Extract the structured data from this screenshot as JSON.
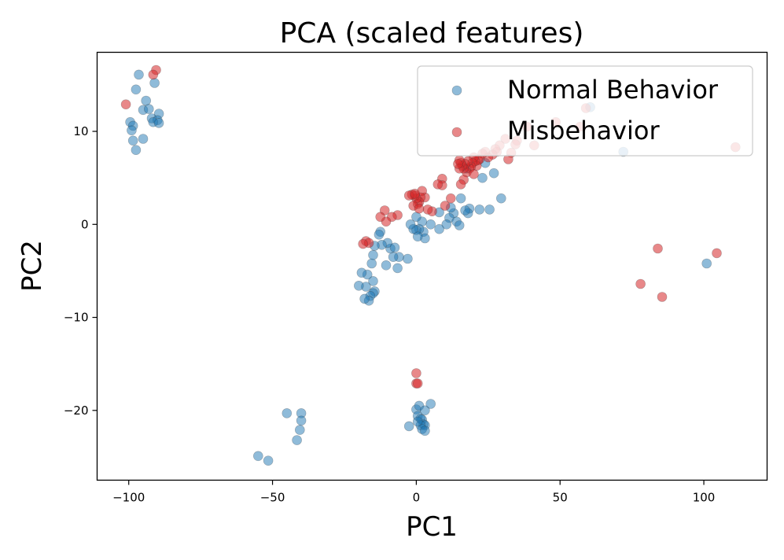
{
  "chart_data": {
    "type": "scatter",
    "title": "PCA (scaled features)",
    "xlabel": "PC1",
    "ylabel": "PC2",
    "xlim": [
      -111,
      122
    ],
    "ylim": [
      -27.5,
      18.5
    ],
    "xticks": [
      -100,
      -50,
      0,
      50,
      100
    ],
    "yticks": [
      -20,
      -10,
      0,
      10
    ],
    "xtick_labels": [
      "−100",
      "−50",
      "0",
      "50",
      "100"
    ],
    "ytick_labels": [
      "−20",
      "−10",
      "0",
      "10"
    ],
    "grid": false,
    "legend_position": "top-right",
    "series": [
      {
        "name": "Normal Behavior",
        "color": "#1f77b4",
        "opacity": 0.5,
        "points": [
          [
            -96.5,
            16.1
          ],
          [
            -97.5,
            14.5
          ],
          [
            -91.0,
            15.2
          ],
          [
            -94.0,
            13.3
          ],
          [
            -95.0,
            12.3
          ],
          [
            -93.0,
            12.4
          ],
          [
            -89.5,
            11.9
          ],
          [
            -92.0,
            11.4
          ],
          [
            -90.0,
            11.2
          ],
          [
            -91.5,
            11.0
          ],
          [
            -89.5,
            10.9
          ],
          [
            -99.5,
            11.0
          ],
          [
            -98.5,
            10.6
          ],
          [
            -99.0,
            10.1
          ],
          [
            -98.5,
            9.0
          ],
          [
            -95.0,
            9.2
          ],
          [
            -97.5,
            8.0
          ],
          [
            72.0,
            7.8
          ],
          [
            60.5,
            12.6
          ],
          [
            101.0,
            -4.2
          ],
          [
            29.5,
            2.8
          ],
          [
            25.5,
            1.6
          ],
          [
            22.0,
            1.6
          ],
          [
            18.5,
            1.7
          ],
          [
            18.0,
            1.2
          ],
          [
            17.0,
            1.5
          ],
          [
            23.0,
            5.0
          ],
          [
            27.0,
            5.5
          ],
          [
            24.0,
            6.6
          ],
          [
            17.5,
            6.0
          ],
          [
            15.5,
            2.8
          ],
          [
            13.0,
            1.2
          ],
          [
            12.0,
            1.8
          ],
          [
            11.5,
            0.7
          ],
          [
            10.5,
            0.0
          ],
          [
            8.0,
            1.3
          ],
          [
            8.0,
            -0.5
          ],
          [
            14.0,
            0.3
          ],
          [
            15.0,
            -0.1
          ],
          [
            5.0,
            0.0
          ],
          [
            2.5,
            -0.8
          ],
          [
            2.0,
            0.3
          ],
          [
            1.0,
            -0.5
          ],
          [
            0.0,
            -0.6
          ],
          [
            3.0,
            -1.5
          ],
          [
            0.5,
            -1.3
          ],
          [
            -1.0,
            -0.5
          ],
          [
            -2.0,
            0.0
          ],
          [
            0.0,
            0.8
          ],
          [
            -3.0,
            -3.7
          ],
          [
            -6.0,
            -3.5
          ],
          [
            -6.5,
            -4.7
          ],
          [
            -8.0,
            -3.5
          ],
          [
            -9.0,
            -2.6
          ],
          [
            -10.0,
            -2.0
          ],
          [
            -10.5,
            -4.4
          ],
          [
            -7.5,
            -2.5
          ],
          [
            -12.0,
            -2.2
          ],
          [
            -12.5,
            -0.8
          ],
          [
            -13.0,
            -1.1
          ],
          [
            -14.5,
            -2.3
          ],
          [
            -15.0,
            -3.3
          ],
          [
            -15.5,
            -4.2
          ],
          [
            -15.0,
            -6.1
          ],
          [
            -14.5,
            -7.2
          ],
          [
            -15.0,
            -7.4
          ],
          [
            -17.0,
            -5.4
          ],
          [
            -17.5,
            -6.7
          ],
          [
            -16.0,
            -7.7
          ],
          [
            -16.5,
            -8.2
          ],
          [
            -18.0,
            -8.0
          ],
          [
            -19.0,
            -5.2
          ],
          [
            -20.0,
            -6.6
          ],
          [
            -45.0,
            -20.3
          ],
          [
            -40.0,
            -20.3
          ],
          [
            -40.0,
            -21.1
          ],
          [
            -40.5,
            -22.1
          ],
          [
            -41.5,
            -23.2
          ],
          [
            -55.0,
            -24.9
          ],
          [
            -51.5,
            -25.4
          ],
          [
            0.0,
            -19.9
          ],
          [
            1.0,
            -19.5
          ],
          [
            3.0,
            -20.0
          ],
          [
            5.0,
            -19.3
          ],
          [
            -2.5,
            -21.7
          ],
          [
            0.5,
            -20.6
          ],
          [
            1.5,
            -20.9
          ],
          [
            2.0,
            -21.0
          ],
          [
            2.5,
            -21.5
          ],
          [
            3.0,
            -21.6
          ],
          [
            1.5,
            -21.6
          ],
          [
            2.0,
            -22.0
          ],
          [
            3.0,
            -22.2
          ],
          [
            0.5,
            -21.2
          ]
        ]
      },
      {
        "name": "Misbehavior",
        "color": "#d62728",
        "opacity": 0.55,
        "points": [
          [
            -101.0,
            12.9
          ],
          [
            -90.5,
            16.6
          ],
          [
            -91.5,
            16.1
          ],
          [
            111.0,
            8.3
          ],
          [
            84.0,
            -2.6
          ],
          [
            104.5,
            -3.1
          ],
          [
            78.0,
            -6.4
          ],
          [
            85.5,
            -7.8
          ],
          [
            48.5,
            11.0
          ],
          [
            57.0,
            10.5
          ],
          [
            59.0,
            12.5
          ],
          [
            41.0,
            8.5
          ],
          [
            38.5,
            10.5
          ],
          [
            35.0,
            9.0
          ],
          [
            34.5,
            8.6
          ],
          [
            33.0,
            7.7
          ],
          [
            32.0,
            7.0
          ],
          [
            31.0,
            9.2
          ],
          [
            29.0,
            8.5
          ],
          [
            28.0,
            7.8
          ],
          [
            27.5,
            8.1
          ],
          [
            26.5,
            7.5
          ],
          [
            25.0,
            7.2
          ],
          [
            24.0,
            7.8
          ],
          [
            23.0,
            7.6
          ],
          [
            22.0,
            7.0
          ],
          [
            21.5,
            6.9
          ],
          [
            21.0,
            6.3
          ],
          [
            20.5,
            6.8
          ],
          [
            20.0,
            7.2
          ],
          [
            19.5,
            6.6
          ],
          [
            19.0,
            6.2
          ],
          [
            18.5,
            6.0
          ],
          [
            18.0,
            6.8
          ],
          [
            17.5,
            5.6
          ],
          [
            17.0,
            6.5
          ],
          [
            16.5,
            6.0
          ],
          [
            16.0,
            6.3
          ],
          [
            15.5,
            6.6
          ],
          [
            15.0,
            6.9
          ],
          [
            15.0,
            6.0
          ],
          [
            14.5,
            6.5
          ],
          [
            20.0,
            5.4
          ],
          [
            16.5,
            4.8
          ],
          [
            15.5,
            4.3
          ],
          [
            9.0,
            4.9
          ],
          [
            9.0,
            4.2
          ],
          [
            7.5,
            4.3
          ],
          [
            12.0,
            2.8
          ],
          [
            10.0,
            2.0
          ],
          [
            5.5,
            1.4
          ],
          [
            4.0,
            1.6
          ],
          [
            3.0,
            2.9
          ],
          [
            2.0,
            3.6
          ],
          [
            1.5,
            2.9
          ],
          [
            1.0,
            2.4
          ],
          [
            0.5,
            2.2
          ],
          [
            0.0,
            2.8
          ],
          [
            -0.5,
            3.1
          ],
          [
            -1.5,
            3.2
          ],
          [
            -2.5,
            3.1
          ],
          [
            -1.0,
            2.0
          ],
          [
            -0.5,
            3.3
          ],
          [
            1.0,
            1.7
          ],
          [
            -6.5,
            1.0
          ],
          [
            -8.5,
            0.8
          ],
          [
            -10.5,
            0.3
          ],
          [
            -11.0,
            1.5
          ],
          [
            -12.5,
            0.8
          ],
          [
            -17.5,
            -1.8
          ],
          [
            -16.5,
            -2.0
          ],
          [
            -18.5,
            -2.1
          ],
          [
            0.0,
            -16.0
          ],
          [
            0.0,
            -17.1
          ],
          [
            0.5,
            -17.1
          ]
        ]
      }
    ]
  }
}
